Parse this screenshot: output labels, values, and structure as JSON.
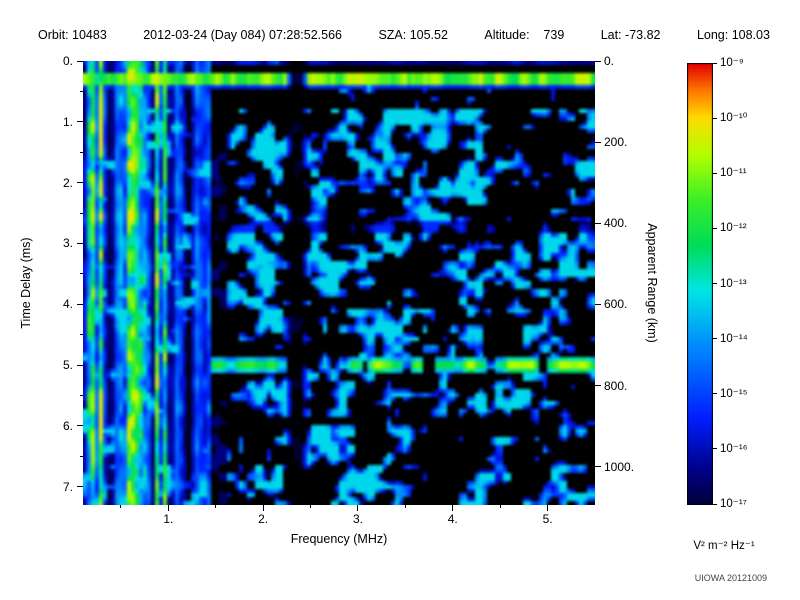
{
  "header": {
    "items": [
      "Orbit: 10483",
      "2012-03-24 (Day 084) 07:28:52.566",
      "SZA: 105.52",
      "Altitude:    739",
      "Lat: -73.82",
      "Long: 108.03"
    ]
  },
  "credit": "UIOWA 20121009",
  "chart_data": {
    "type": "heatmap",
    "title": "",
    "xlabel": "Frequency (MHz)",
    "ylabel": "Time Delay (ms)",
    "y2label": "Apparent Range (km)",
    "xlim": [
      0.1,
      5.5
    ],
    "ylim": [
      0,
      7.3
    ],
    "x_ticks": {
      "values": [
        1,
        2,
        3,
        4,
        5
      ],
      "labels": [
        "1.",
        "2.",
        "3.",
        "4.",
        "5."
      ]
    },
    "x_minor_step": 0.5,
    "y_ticks": {
      "values": [
        0,
        1,
        2,
        3,
        4,
        5,
        6,
        7
      ],
      "labels": [
        "0.",
        "1.",
        "2.",
        "3.",
        "4.",
        "5.",
        "6.",
        "7."
      ]
    },
    "y_minor_step": 0.5,
    "y2_ticks": {
      "values_km": [
        0,
        200,
        400,
        600,
        800,
        1000
      ],
      "labels": [
        "0.",
        "200.",
        "400.",
        "600.",
        "800.",
        "1000."
      ]
    },
    "km_per_ms": 149.9,
    "colorbar": {
      "labels": [
        "10⁻⁹",
        "10⁻¹⁰",
        "10⁻¹¹",
        "10⁻¹²",
        "10⁻¹³",
        "10⁻¹⁴",
        "10⁻¹⁵",
        "10⁻¹⁶",
        "10⁻¹⁷"
      ],
      "units": "V² m⁻² Hz⁻¹",
      "min_exp": -17,
      "max_exp": -9
    },
    "features": {
      "background_color": "#000000",
      "surface_echo_band_ms": 0.3,
      "second_echo_band_ms": 5.0,
      "ionospheric_stripes_max_mhz": 1.5,
      "interference_gap_mhz": 2.35,
      "noise_floor_color": "#0000aa",
      "seed": 12345
    }
  }
}
